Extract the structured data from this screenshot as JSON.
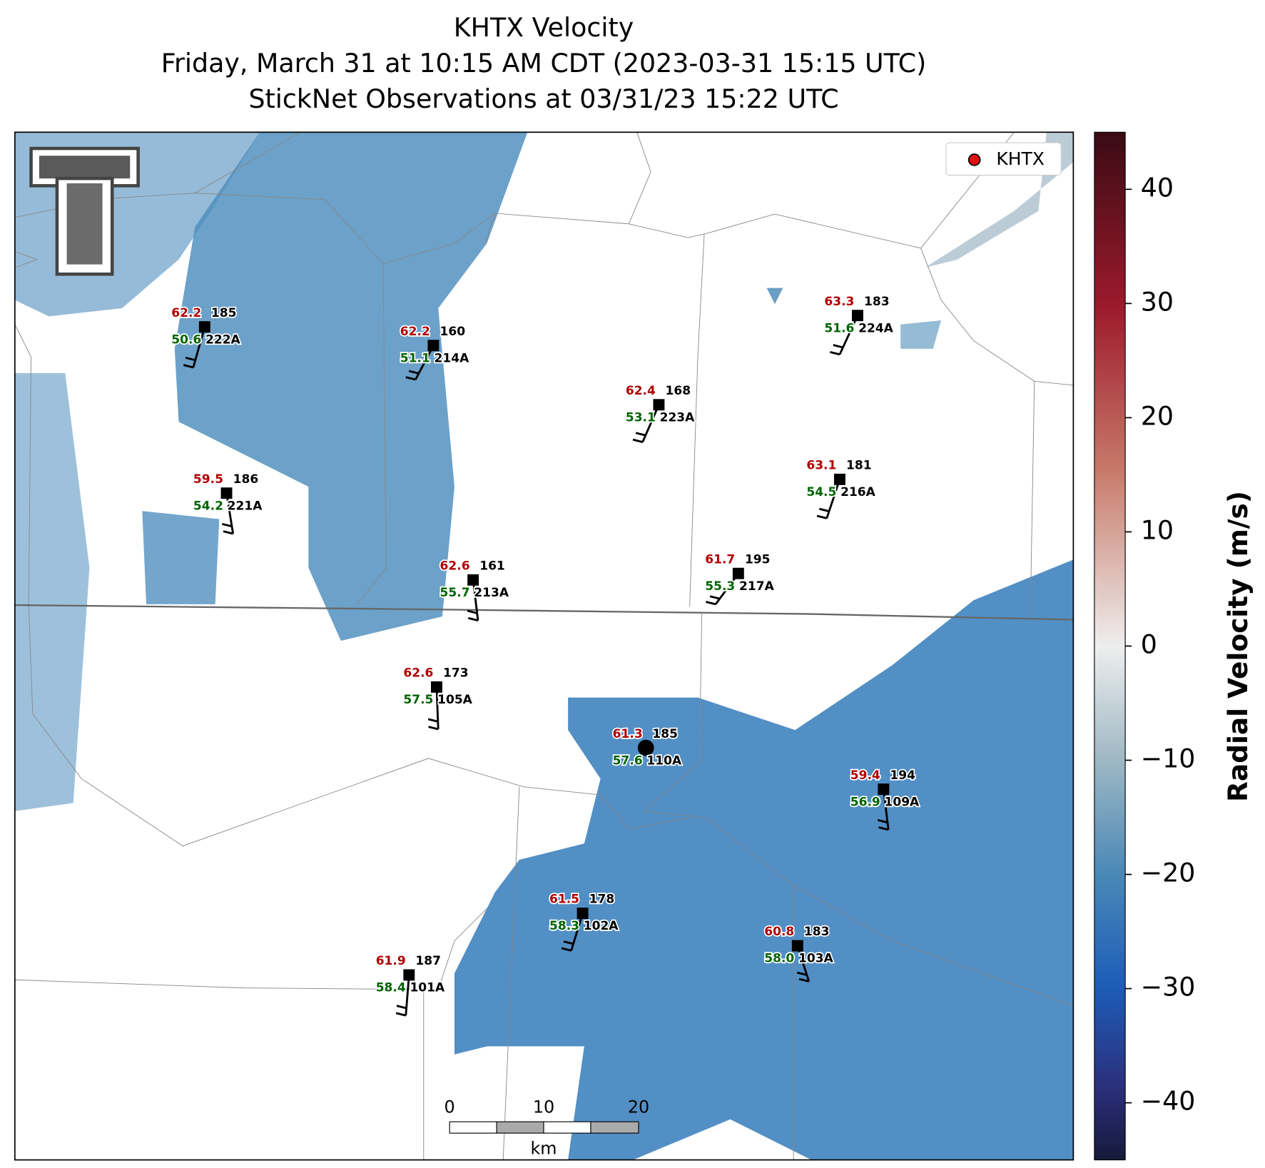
{
  "title": [
    "KHTX Velocity",
    "Friday, March 31 at 10:15 AM CDT (2023-03-31 15:15 UTC)",
    "StickNet Observations at 03/31/23 15:22 UTC"
  ],
  "legend": {
    "label": "KHTX"
  },
  "colorbar": {
    "label": "Radial Velocity (m/s)",
    "range": [
      -45,
      45
    ],
    "ticks": [
      {
        "value": -40,
        "label": "−40"
      },
      {
        "value": -30,
        "label": "−30"
      },
      {
        "value": -20,
        "label": "−20"
      },
      {
        "value": -10,
        "label": "−10"
      },
      0,
      10,
      20,
      30,
      40
    ]
  },
  "scale_bar": {
    "ticks": [
      "0",
      "10",
      "20"
    ],
    "unit": "km"
  },
  "stations": [
    {
      "temperature": "62.2",
      "dewpoint": "50.6",
      "reading": "185",
      "id": "222A"
    },
    {
      "temperature": "62.2",
      "dewpoint": "51.1",
      "reading": "160",
      "id": "214A"
    },
    {
      "temperature": "63.3",
      "dewpoint": "51.6",
      "reading": "183",
      "id": "224A"
    },
    {
      "temperature": "62.4",
      "dewpoint": "53.1",
      "reading": "168",
      "id": "223A"
    },
    {
      "temperature": "59.5",
      "dewpoint": "54.2",
      "reading": "186",
      "id": "221A"
    },
    {
      "temperature": "63.1",
      "dewpoint": "54.5",
      "reading": "181",
      "id": "216A"
    },
    {
      "temperature": "62.6",
      "dewpoint": "55.7",
      "reading": "161",
      "id": "213A"
    },
    {
      "temperature": "61.7",
      "dewpoint": "55.3",
      "reading": "195",
      "id": "217A"
    },
    {
      "temperature": "62.6",
      "dewpoint": "57.5",
      "reading": "173",
      "id": "105A"
    },
    {
      "temperature": "61.3",
      "dewpoint": "57.6",
      "reading": "185",
      "id": "110A"
    },
    {
      "temperature": "59.4",
      "dewpoint": "56.9",
      "reading": "194",
      "id": "109A"
    },
    {
      "temperature": "61.5",
      "dewpoint": "58.3",
      "reading": "178",
      "id": "102A"
    },
    {
      "temperature": "60.8",
      "dewpoint": "58.0",
      "reading": "183",
      "id": "103A"
    },
    {
      "temperature": "61.9",
      "dewpoint": "58.4",
      "reading": "187",
      "id": "101A"
    }
  ]
}
